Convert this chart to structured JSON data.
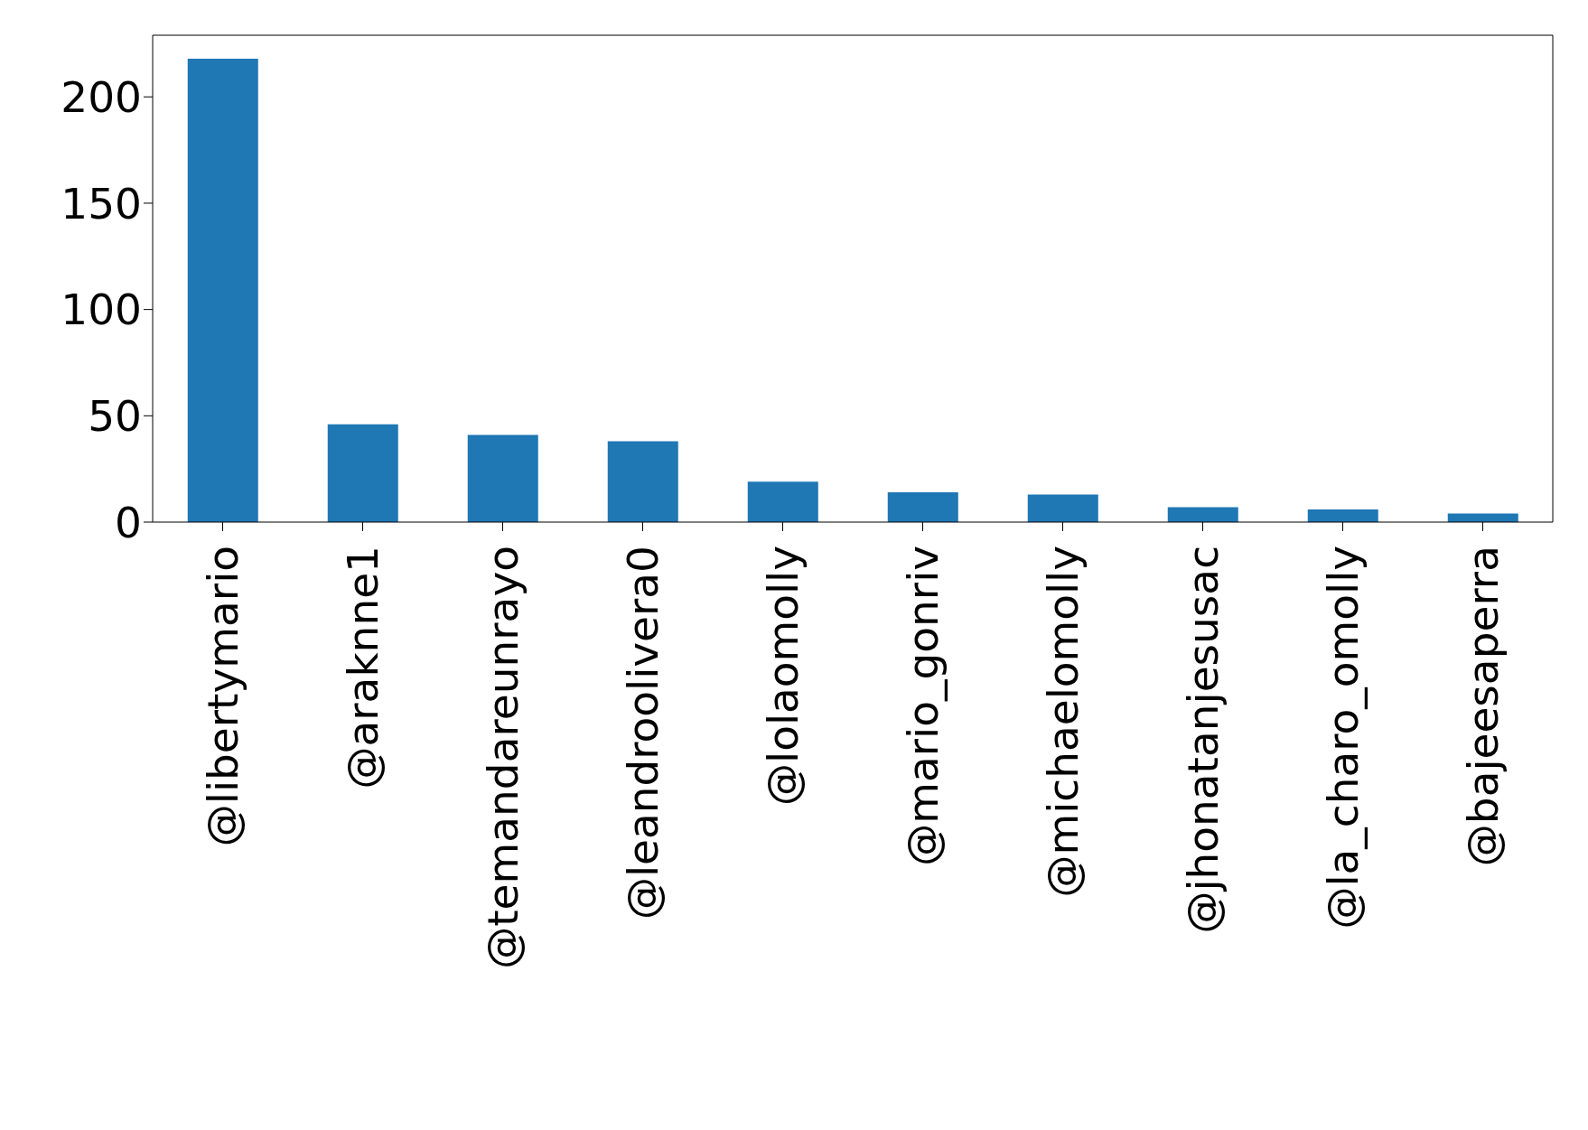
{
  "chart_data": {
    "type": "bar",
    "categories": [
      "@libertymario",
      "@araknne1",
      "@temandareunrayo",
      "@leandroolivera0",
      "@lolaomolly",
      "@mario_gonriv",
      "@michaelomolly",
      "@jhonatanjesusac",
      "@la_charo_omolly",
      "@bajeesaperra"
    ],
    "values": [
      218,
      46,
      41,
      38,
      19,
      14,
      13,
      7,
      6,
      4
    ],
    "color": "#1f77b4",
    "ylim": [
      0,
      229
    ],
    "yticks": [
      0,
      50,
      100,
      150,
      200
    ],
    "grid": false,
    "legend": false
  }
}
